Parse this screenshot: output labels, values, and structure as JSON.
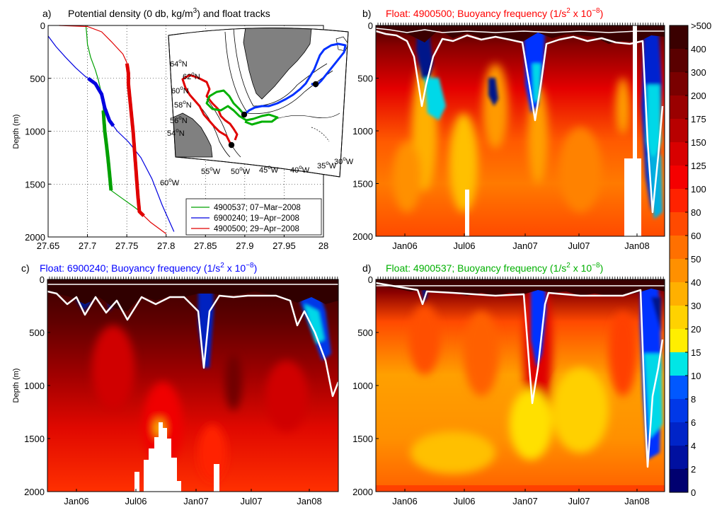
{
  "chart_data": [
    {
      "type": "line",
      "panel_label": "a)",
      "title": "Potential density (0 db, kg/m",
      "title_sup": "3",
      "title_end": ") and float tracks",
      "ylabel": "Depth (m)",
      "xlim": [
        27.65,
        28.0
      ],
      "ylim": [
        0,
        2000
      ],
      "x_ticks": [
        "27.65",
        "27.7",
        "27.75",
        "27.8",
        "27.85",
        "27.9",
        "27.95",
        "28"
      ],
      "y_ticks": [
        "0",
        "500",
        "1000",
        "1500",
        "2000"
      ],
      "grid": true,
      "legend_position": "bottom-right",
      "series": [
        {
          "name": "4900537; 07−Mar−2008",
          "color": "#00a000",
          "points": [
            [
              27.698,
              0
            ],
            [
              27.699,
              80
            ],
            [
              27.7,
              180
            ],
            [
              27.704,
              300
            ],
            [
              27.71,
              420
            ],
            [
              27.714,
              520
            ],
            [
              27.718,
              650
            ],
            [
              27.72,
              780
            ],
            [
              27.721,
              900
            ],
            [
              27.722,
              1000
            ],
            [
              27.724,
              1120
            ],
            [
              27.726,
              1250
            ],
            [
              27.728,
              1400
            ],
            [
              27.73,
              1560
            ],
            [
              27.745,
              1640
            ],
            [
              27.76,
              1720
            ],
            [
              27.772,
              1790
            ]
          ],
          "bold_range": [
            800,
            1560
          ]
        },
        {
          "name": "6900240; 19−Apr−2008",
          "color": "#0000e0",
          "points": [
            [
              27.65,
              100
            ],
            [
              27.66,
              200
            ],
            [
              27.672,
              300
            ],
            [
              27.685,
              400
            ],
            [
              27.697,
              480
            ],
            [
              27.71,
              550
            ],
            [
              27.718,
              650
            ],
            [
              27.722,
              780
            ],
            [
              27.728,
              900
            ],
            [
              27.738,
              1000
            ],
            [
              27.752,
              1100
            ],
            [
              27.768,
              1250
            ],
            [
              27.782,
              1450
            ],
            [
              27.795,
              1700
            ],
            [
              27.81,
              1950
            ]
          ],
          "bold_range": [
            500,
            950
          ]
        },
        {
          "name": "4900500; 29−Apr−2008",
          "color": "#e00000",
          "points": [
            [
              27.664,
              0
            ],
            [
              27.7,
              10
            ],
            [
              27.718,
              60
            ],
            [
              27.73,
              150
            ],
            [
              27.745,
              270
            ],
            [
              27.75,
              350
            ],
            [
              27.752,
              450
            ],
            [
              27.752,
              550
            ],
            [
              27.754,
              700
            ],
            [
              27.756,
              850
            ],
            [
              27.758,
              1000
            ],
            [
              27.76,
              1200
            ],
            [
              27.762,
              1400
            ],
            [
              27.764,
              1600
            ],
            [
              27.766,
              1760
            ],
            [
              27.78,
              1860
            ],
            [
              27.8,
              1970
            ]
          ],
          "bold_range": [
            360,
            1800
          ]
        }
      ],
      "inset_map": {
        "lat_labels": [
          "64",
          "62",
          "60",
          "58",
          "56",
          "54"
        ],
        "lat_suffix": "N",
        "lon_labels": [
          "60",
          "55",
          "50",
          "45",
          "40",
          "35",
          "30"
        ],
        "lon_suffix": "W",
        "degree_mark": "o",
        "land_color": "#808080"
      }
    },
    {
      "type": "heatmap",
      "panel_label": "b)",
      "title": "Float: 4900500; Buoyancy frequency (1/s",
      "title_sup": "2",
      "title_mid": " x 10",
      "title_sup2": "−8",
      "title_end": ")",
      "title_color": "#ff0000",
      "ylim": [
        0,
        2000
      ],
      "x_ticks": [
        "Jan06",
        "Jul06",
        "Jan07",
        "Jul07",
        "Jan08"
      ],
      "y_ticks": [
        "0",
        "500",
        "1000",
        "1500",
        "2000"
      ]
    },
    {
      "type": "heatmap",
      "panel_label": "c)",
      "title": "Float: 6900240; Buoyancy frequency (1/s",
      "title_sup": "2",
      "title_mid": " x 10",
      "title_sup2": "−8",
      "title_end": ")",
      "title_color": "#0000ff",
      "ylabel": "Depth (m)",
      "ylim": [
        0,
        2000
      ],
      "x_ticks": [
        "Jan06",
        "Jul06",
        "Jan07",
        "Jul07",
        "Jan08"
      ],
      "y_ticks": [
        "0",
        "500",
        "1000",
        "1500",
        "2000"
      ]
    },
    {
      "type": "heatmap",
      "panel_label": "d)",
      "title": "Float: 4900537; Buoyancy frequency (1/s",
      "title_sup": "2",
      "title_mid": " x 10",
      "title_sup2": "−8",
      "title_end": ")",
      "title_color": "#00b000",
      "ylim": [
        0,
        2000
      ],
      "x_ticks": [
        "Jan06",
        "Jul06",
        "Jan07",
        "Jul07",
        "Jan08"
      ],
      "y_ticks": [
        "0",
        "500",
        "1000",
        "1500",
        "2000"
      ]
    }
  ],
  "colorbar": {
    "labels": [
      ">500",
      "400",
      "300",
      "200",
      "175",
      "150",
      "125",
      "100",
      "80",
      "60",
      "50",
      "40",
      "30",
      "20",
      "15",
      "10",
      "8",
      "6",
      "4",
      "2",
      "0"
    ],
    "colors": [
      "#3a0000",
      "#5a0000",
      "#7a0000",
      "#9a0000",
      "#b80000",
      "#d80000",
      "#f50000",
      "#ff2200",
      "#ff4a00",
      "#ff7000",
      "#ff9000",
      "#ffb000",
      "#ffd200",
      "#ffee00",
      "#00e6e6",
      "#0058ff",
      "#0038e8",
      "#0024c8",
      "#0010a0",
      "#000070"
    ]
  }
}
